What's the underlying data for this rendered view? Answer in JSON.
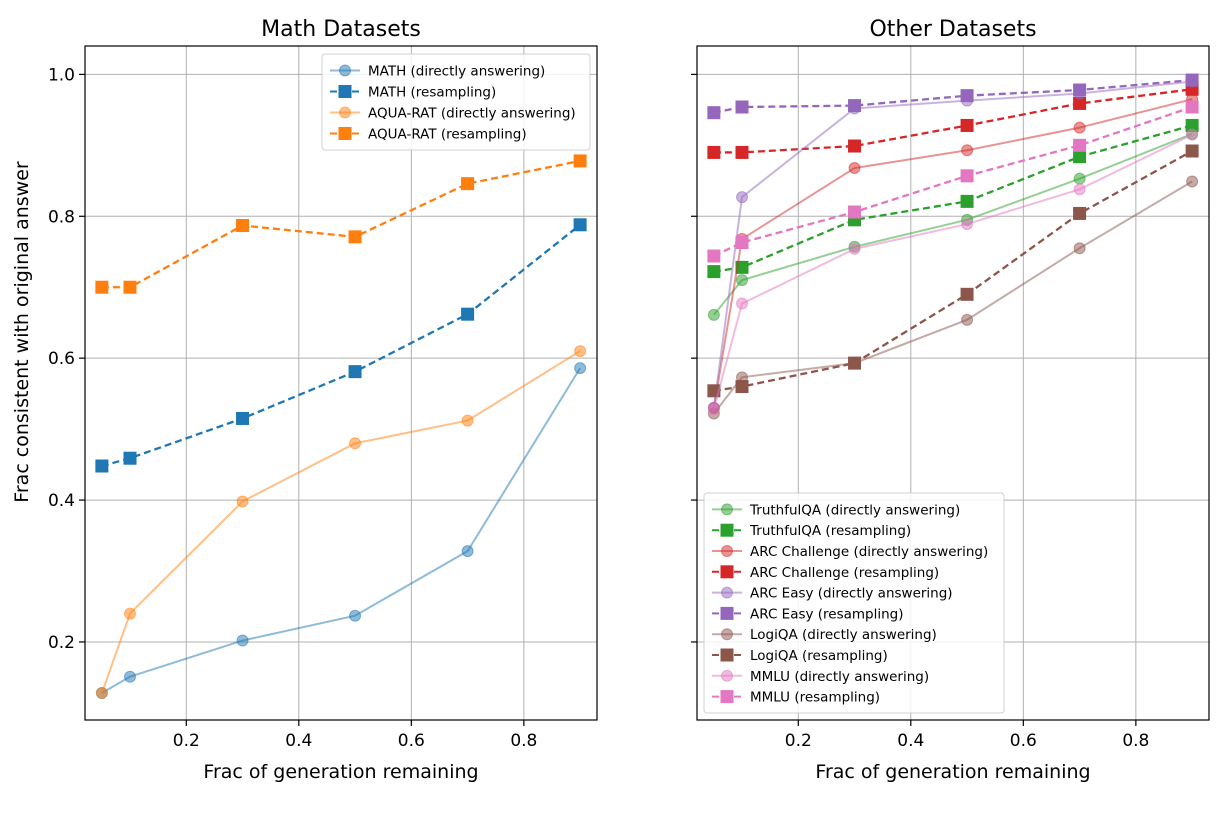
{
  "figure": {
    "ylabel": "Frac consistent with original answer"
  },
  "chart_data": [
    {
      "type": "line",
      "title": "Math Datasets",
      "xlabel": "Frac of generation remaining",
      "ylabel": "Frac consistent with original answer",
      "xlim": [
        0.02,
        0.93
      ],
      "ylim": [
        0.09,
        1.04
      ],
      "xticks": [
        0.2,
        0.4,
        0.6,
        0.8
      ],
      "xtick_labels": [
        "0.2",
        "0.4",
        "0.6",
        "0.8"
      ],
      "yticks": [
        0.2,
        0.4,
        0.6,
        0.8,
        1.0
      ],
      "ytick_labels": [
        "0.2",
        "0.4",
        "0.6",
        "0.8",
        "1.0"
      ],
      "grid": true,
      "legend_position": "top-right",
      "x": [
        0.05,
        0.1,
        0.3,
        0.5,
        0.7,
        0.9
      ],
      "series": [
        {
          "name": "MATH (directly answering)",
          "color": "#1f77b4",
          "marker": "circle",
          "dashed": false,
          "faded": true,
          "values": [
            0.128,
            0.151,
            0.202,
            0.237,
            0.328,
            0.586
          ]
        },
        {
          "name": "MATH (resampling)",
          "color": "#1f77b4",
          "marker": "square",
          "dashed": true,
          "faded": false,
          "values": [
            0.448,
            0.459,
            0.515,
            0.581,
            0.662,
            0.788
          ]
        },
        {
          "name": "AQUA-RAT (directly answering)",
          "color": "#ff7f0e",
          "marker": "circle",
          "dashed": false,
          "faded": true,
          "values": [
            0.128,
            0.24,
            0.398,
            0.48,
            0.512,
            0.61
          ]
        },
        {
          "name": "AQUA-RAT (resampling)",
          "color": "#ff7f0e",
          "marker": "square",
          "dashed": true,
          "faded": false,
          "values": [
            0.7,
            0.7,
            0.787,
            0.771,
            0.846,
            0.878
          ]
        }
      ]
    },
    {
      "type": "line",
      "title": "Other Datasets",
      "xlabel": "Frac of generation remaining",
      "xlim": [
        0.02,
        0.93
      ],
      "ylim": [
        0.09,
        1.04
      ],
      "xticks": [
        0.2,
        0.4,
        0.6,
        0.8
      ],
      "xtick_labels": [
        "0.2",
        "0.4",
        "0.6",
        "0.8"
      ],
      "yticks": [
        0.2,
        0.4,
        0.6,
        0.8,
        1.0
      ],
      "grid": true,
      "legend_position": "bottom-left",
      "x": [
        0.05,
        0.1,
        0.3,
        0.5,
        0.7,
        0.9
      ],
      "series": [
        {
          "name": "TruthfulQA (directly answering)",
          "color": "#2ca02c",
          "marker": "circle",
          "dashed": false,
          "faded": true,
          "values": [
            0.661,
            0.71,
            0.757,
            0.795,
            0.853,
            0.916
          ]
        },
        {
          "name": "TruthfulQA (resampling)",
          "color": "#2ca02c",
          "marker": "square",
          "dashed": true,
          "faded": false,
          "values": [
            0.722,
            0.728,
            0.795,
            0.821,
            0.884,
            0.928
          ]
        },
        {
          "name": "ARC Challenge (directly answering)",
          "color": "#d62728",
          "marker": "circle",
          "dashed": false,
          "faded": true,
          "values": [
            0.53,
            0.768,
            0.868,
            0.893,
            0.925,
            0.965
          ]
        },
        {
          "name": "ARC Challenge (resampling)",
          "color": "#d62728",
          "marker": "square",
          "dashed": true,
          "faded": false,
          "values": [
            0.89,
            0.89,
            0.899,
            0.928,
            0.959,
            0.979
          ]
        },
        {
          "name": "ARC Easy (directly answering)",
          "color": "#9467bd",
          "marker": "circle",
          "dashed": false,
          "faded": true,
          "values": [
            0.53,
            0.827,
            0.952,
            0.963,
            0.973,
            0.99
          ]
        },
        {
          "name": "ARC Easy (resampling)",
          "color": "#9467bd",
          "marker": "square",
          "dashed": true,
          "faded": false,
          "values": [
            0.946,
            0.954,
            0.956,
            0.97,
            0.978,
            0.992
          ]
        },
        {
          "name": "LogiQA (directly answering)",
          "color": "#8c564b",
          "marker": "circle",
          "dashed": false,
          "faded": true,
          "values": [
            0.522,
            0.573,
            0.593,
            0.654,
            0.755,
            0.849
          ]
        },
        {
          "name": "LogiQA (resampling)",
          "color": "#8c564b",
          "marker": "square",
          "dashed": true,
          "faded": false,
          "values": [
            0.554,
            0.56,
            0.593,
            0.69,
            0.804,
            0.892
          ]
        },
        {
          "name": "MMLU (directly answering)",
          "color": "#e377c2",
          "marker": "circle",
          "dashed": false,
          "faded": true,
          "values": [
            0.528,
            0.677,
            0.754,
            0.789,
            0.838,
            0.915
          ]
        },
        {
          "name": "MMLU (resampling)",
          "color": "#e377c2",
          "marker": "square",
          "dashed": true,
          "faded": false,
          "values": [
            0.744,
            0.763,
            0.806,
            0.857,
            0.9,
            0.954
          ]
        }
      ]
    }
  ]
}
